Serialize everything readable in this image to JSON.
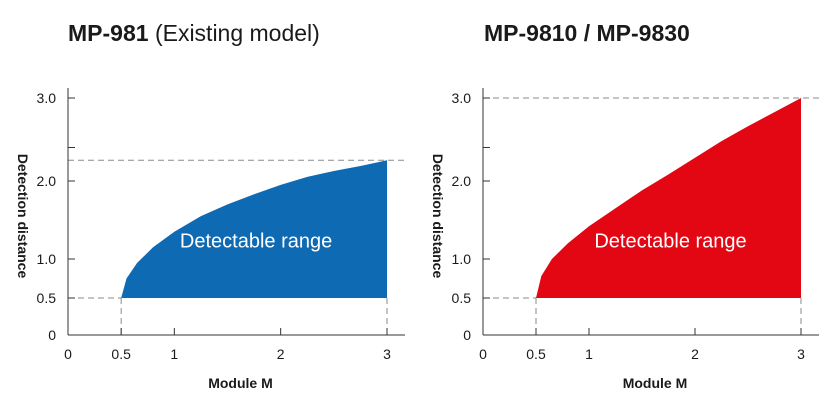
{
  "chart_data": [
    {
      "type": "area",
      "title": "MP-981",
      "subtitle": "(Existing model)",
      "xlabel": "Module M",
      "ylabel": "Detection distance",
      "xlim": [
        0,
        3.2
      ],
      "ylim": [
        0,
        3.2
      ],
      "x_ticks": [
        0,
        0.5,
        1,
        2,
        3
      ],
      "x_tick_labels": [
        "0",
        "0.5",
        "1",
        "2",
        "3"
      ],
      "y_ticks": [
        0,
        0.5,
        1.0,
        2.0,
        3.0
      ],
      "y_tick_labels": [
        "0",
        "0.5",
        "1.0",
        "2.0",
        "3.0"
      ],
      "series": [
        {
          "name": "Detectable range",
          "color": "#0f6ab4",
          "x": [
            0.5,
            0.55,
            0.65,
            0.8,
            1.0,
            1.25,
            1.5,
            1.75,
            2.0,
            2.25,
            2.5,
            2.75,
            3.0
          ],
          "y_upper": [
            0.5,
            0.75,
            0.95,
            1.15,
            1.35,
            1.55,
            1.7,
            1.83,
            1.95,
            2.05,
            2.12,
            2.18,
            2.25
          ],
          "y_lower": 0.5
        }
      ],
      "reference_lines": {
        "y": [
          0.5,
          2.25
        ],
        "x": [
          0.5,
          3
        ]
      },
      "region_label": "Detectable range",
      "grid": false
    },
    {
      "type": "area",
      "title": "MP-9810 / MP-9830",
      "subtitle": "",
      "xlabel": "Module M",
      "ylabel": "Detection distance",
      "xlim": [
        0,
        3.2
      ],
      "ylim": [
        0,
        3.2
      ],
      "x_ticks": [
        0,
        0.5,
        1,
        2,
        3
      ],
      "x_tick_labels": [
        "0",
        "0.5",
        "1",
        "2",
        "3"
      ],
      "y_ticks": [
        0,
        0.5,
        1.0,
        2.0,
        3.0
      ],
      "y_tick_labels": [
        "0",
        "0.5",
        "1.0",
        "2.0",
        "3.0"
      ],
      "series": [
        {
          "name": "Detectable range",
          "color": "#e30613",
          "x": [
            0.5,
            0.55,
            0.65,
            0.8,
            1.0,
            1.25,
            1.5,
            1.75,
            2.0,
            2.25,
            2.5,
            2.75,
            3.0
          ],
          "y_upper": [
            0.5,
            0.78,
            1.0,
            1.2,
            1.42,
            1.65,
            1.88,
            2.08,
            2.28,
            2.48,
            2.66,
            2.83,
            3.0
          ],
          "y_lower": 0.5
        }
      ],
      "reference_lines": {
        "y": [
          0.5,
          3.0
        ],
        "x": [
          0.5,
          3
        ]
      },
      "region_label": "Detectable range",
      "grid": false
    }
  ]
}
